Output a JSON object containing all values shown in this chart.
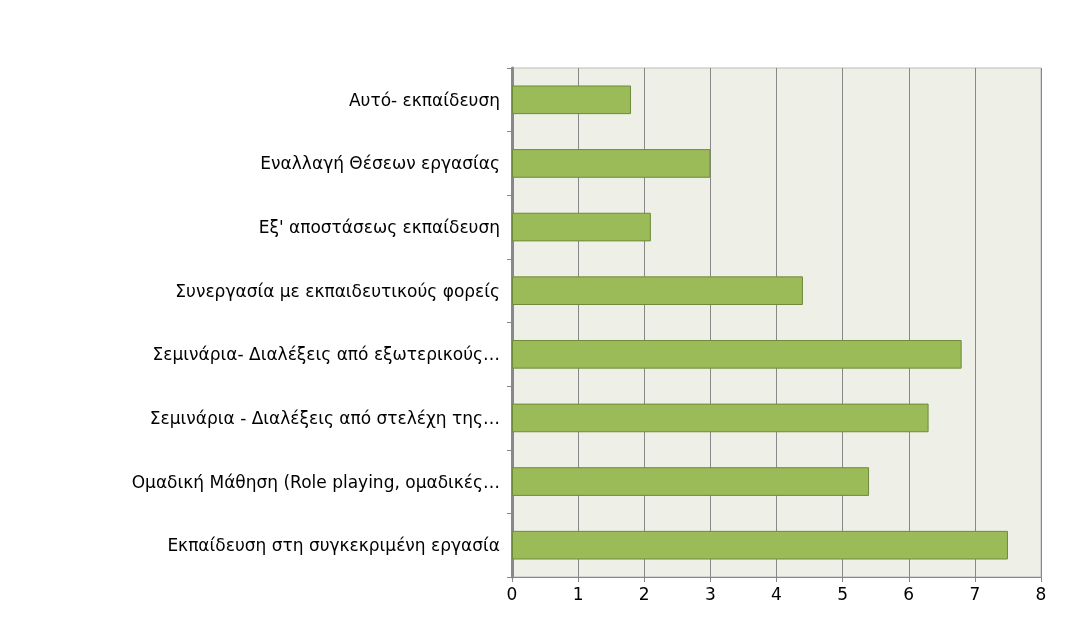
{
  "chart_data": {
    "type": "bar",
    "orientation": "horizontal",
    "categories": [
      "Αυτό- εκπαίδευση",
      "Εναλλαγή Θέσεων εργασίας",
      "Εξ' αποστάσεως εκπαίδευση",
      "Συνεργασία με εκπαιδευτικούς φορείς",
      "Σεμινάρια- Διαλέξεις από εξωτερικούς…",
      "Σεμινάρια - Διαλέξεις από στελέχη της…",
      "Ομαδική Μάθηση (Role playing, ομαδικές…",
      "Εκπαίδευση στη συγκεκριμένη εργασία"
    ],
    "values": [
      1.8,
      3.0,
      2.1,
      4.4,
      6.8,
      6.3,
      5.4,
      7.5
    ],
    "color": "#9bbb59",
    "xlim": [
      0,
      8
    ],
    "xticks": [
      0,
      1,
      2,
      3,
      4,
      5,
      6,
      7,
      8
    ],
    "grid": "x"
  }
}
